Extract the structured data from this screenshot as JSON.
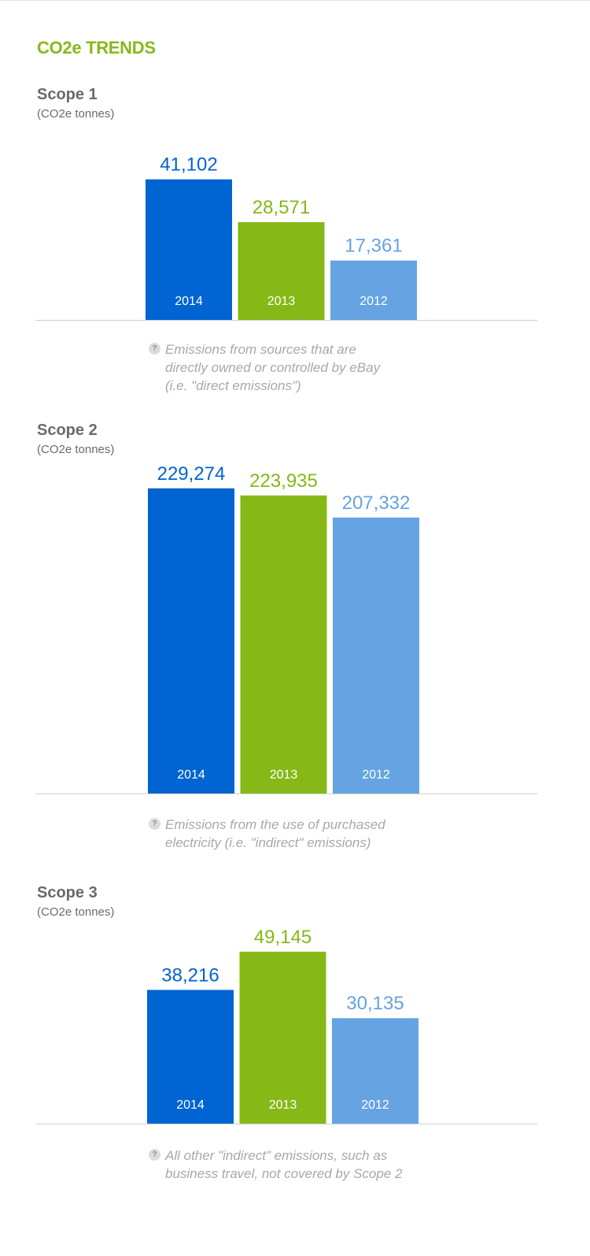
{
  "title": "CO2e TRENDS",
  "colors": {
    "title_green": "#8ab81a",
    "heading_gray": "#6b6b64",
    "text_gray": "#6b6b6b",
    "note_gray": "#a8a8a8",
    "axis_line": "#cfcfcf",
    "bar_2014": "#0064d2",
    "bar_2013": "#86b817",
    "bar_2012": "#66a3e2"
  },
  "chart_data": [
    {
      "type": "bar",
      "title": "Scope 1",
      "subtitle": "(CO2e tonnes)",
      "categories": [
        "2014",
        "2013",
        "2012"
      ],
      "values": [
        41102,
        28571,
        17361
      ],
      "value_labels": [
        "41,102",
        "28,571",
        "17,361"
      ],
      "note": "Emissions from sources that are\ndirectly owned or controlled by eBay\n(i.e. \"direct emissions\")",
      "grid": false
    },
    {
      "type": "bar",
      "title": "Scope 2",
      "subtitle": "(CO2e tonnes)",
      "categories": [
        "2014",
        "2013",
        "2012"
      ],
      "values": [
        229274,
        223935,
        207332
      ],
      "value_labels": [
        "229,274",
        "223,935",
        "207,332"
      ],
      "note": "Emissions from the use of purchased\nelectricity (i.e. \"indirect\" emissions)",
      "grid": false
    },
    {
      "type": "bar",
      "title": "Scope 3",
      "subtitle": "(CO2e tonnes)",
      "categories": [
        "2014",
        "2013",
        "2012"
      ],
      "values": [
        38216,
        49145,
        30135
      ],
      "value_labels": [
        "38,216",
        "49,145",
        "30,135"
      ],
      "note": "All other \"indirect\" emissions, such as\nbusiness travel, not covered by Scope 2",
      "grid": false
    }
  ]
}
